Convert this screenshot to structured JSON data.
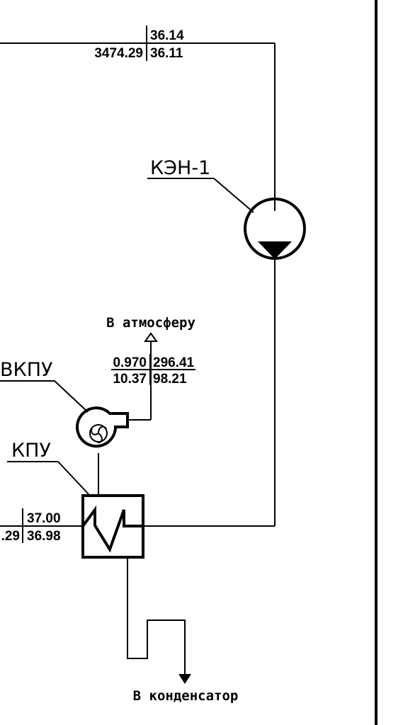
{
  "pipe_top": {
    "upper_value": "36.14",
    "lower_left_value": "3474.29",
    "lower_right_value": "36.11"
  },
  "pump": {
    "label": "КЭН-1"
  },
  "fan": {
    "label": "ВКПУ"
  },
  "heater": {
    "label": "КПУ"
  },
  "vent": {
    "destination": "В атмосферу",
    "upper_left_value": "0.970",
    "upper_right_value": "296.41",
    "lower_left_value": "10.37",
    "lower_right_value": "98.21"
  },
  "pipe_heater": {
    "upper_value": "37.00",
    "lower_left_value": ".29",
    "lower_right_value": "36.98"
  },
  "drain": {
    "destination": "В конденсатор"
  }
}
